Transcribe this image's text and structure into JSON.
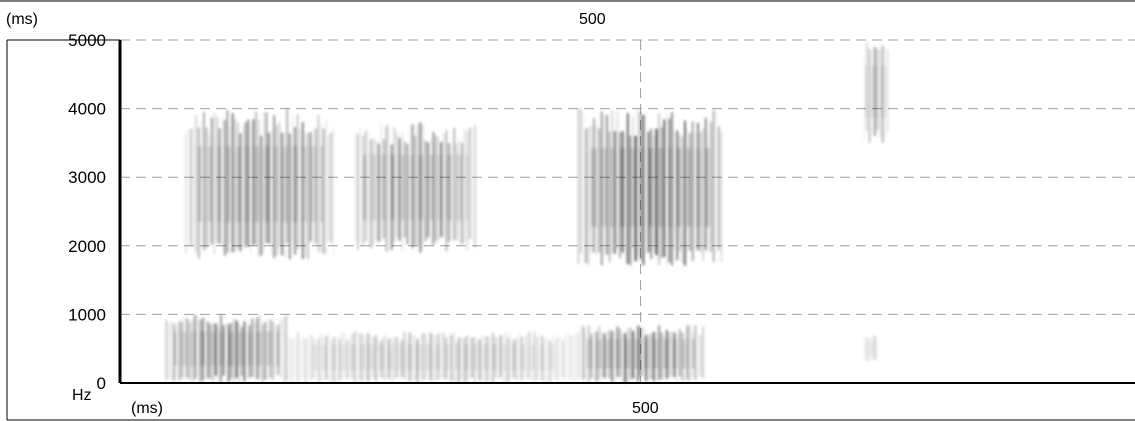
{
  "chart_data": {
    "type": "heatmap",
    "title": "",
    "xlabel": "(ms)",
    "ylabel": "Hz",
    "xunit_top": "(ms)",
    "xunit_bottom": "(ms)",
    "x_tick_labels": [
      "500"
    ],
    "x_ticks": [
      500
    ],
    "y_ticks": [
      0,
      1000,
      2000,
      3000,
      4000,
      5000
    ],
    "y_tick_labels": [
      "0",
      "1000",
      "2000",
      "3000",
      "4000",
      "5000"
    ],
    "xlim": [
      -37,
      1010
    ],
    "ylim": [
      0,
      5000
    ],
    "grid": true,
    "colormap": "grayscale",
    "energy_regions": [
      {
        "x": [
          30,
          185
        ],
        "y": [
          1800,
          4000
        ],
        "intensity": 0.8
      },
      {
        "x": [
          205,
          330
        ],
        "y": [
          1900,
          3800
        ],
        "intensity": 0.75
      },
      {
        "x": [
          435,
          585
        ],
        "y": [
          1700,
          4000
        ],
        "intensity": 0.95
      },
      {
        "x": [
          10,
          135
        ],
        "y": [
          0,
          1000
        ],
        "intensity": 0.85
      },
      {
        "x": [
          135,
          435
        ],
        "y": [
          0,
          750
        ],
        "intensity": 0.45
      },
      {
        "x": [
          435,
          565
        ],
        "y": [
          0,
          850
        ],
        "intensity": 0.85
      },
      {
        "x": [
          730,
          755
        ],
        "y": [
          3500,
          5000
        ],
        "intensity": 0.55
      },
      {
        "x": [
          730,
          745
        ],
        "y": [
          300,
          700
        ],
        "intensity": 0.3
      }
    ]
  },
  "colors": {
    "background": "#ffffff",
    "axis": "#000000",
    "grid": "#a0a0a0"
  }
}
